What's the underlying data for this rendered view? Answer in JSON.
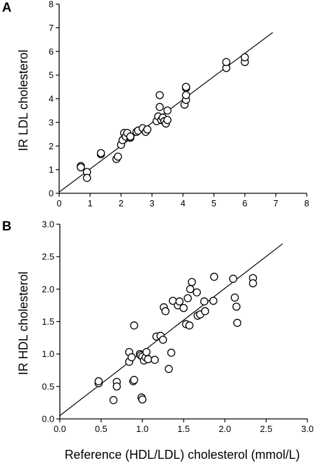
{
  "chart_data": [
    {
      "panel": "A",
      "type": "scatter",
      "ylabel": "IR LDL cholesterol",
      "xlabel": "",
      "xlim": [
        0,
        8
      ],
      "ylim": [
        0,
        8
      ],
      "xticks": [
        "0",
        "1",
        "2",
        "3",
        "4",
        "5",
        "6",
        "7",
        "8"
      ],
      "yticks": [
        "0",
        "1",
        "2",
        "3",
        "4",
        "5",
        "6",
        "7",
        "8"
      ],
      "x": [
        0.7,
        0.7,
        0.9,
        0.9,
        1.35,
        1.35,
        1.85,
        1.9,
        2.0,
        2.05,
        2.1,
        2.15,
        2.2,
        2.3,
        2.3,
        2.5,
        2.55,
        2.7,
        2.8,
        2.85,
        3.15,
        3.2,
        3.25,
        3.25,
        3.3,
        3.35,
        3.4,
        3.45,
        3.5,
        3.5,
        4.05,
        4.1,
        4.1,
        4.1,
        4.1,
        5.4,
        5.4,
        6.0,
        6.0
      ],
      "y": [
        1.15,
        1.1,
        0.9,
        0.65,
        1.65,
        1.7,
        1.45,
        1.55,
        2.05,
        2.25,
        2.55,
        2.4,
        2.55,
        2.35,
        2.4,
        2.6,
        2.65,
        2.75,
        2.6,
        2.7,
        3.05,
        3.25,
        4.15,
        3.65,
        3.1,
        3.2,
        3.05,
        2.95,
        3.1,
        3.5,
        3.75,
        3.95,
        4.15,
        4.45,
        4.5,
        5.3,
        5.55,
        5.55,
        5.75
      ],
      "regression_line": {
        "x": [
          0,
          6.9
        ],
        "y": [
          0.05,
          6.8
        ]
      }
    },
    {
      "panel": "B",
      "type": "scatter",
      "ylabel": "IR HDL cholesterol",
      "xlabel": "Reference (HDL/LDL) cholesterol (mmol/L)",
      "xlim": [
        0,
        3.0
      ],
      "ylim": [
        0,
        3.0
      ],
      "xticks": [
        "0.0",
        "0.5",
        "1.0",
        "1.5",
        "2.0",
        "2.5",
        "3.0"
      ],
      "yticks": [
        "0.0",
        "0.5",
        "1.0",
        "1.5",
        "2.0",
        "2.5",
        "3.0"
      ],
      "x": [
        0.47,
        0.47,
        0.65,
        0.69,
        0.69,
        0.84,
        0.84,
        0.87,
        0.89,
        0.9,
        0.9,
        0.97,
        0.98,
        0.99,
        1.0,
        1.0,
        1.02,
        1.04,
        1.05,
        1.07,
        1.15,
        1.17,
        1.22,
        1.25,
        1.26,
        1.28,
        1.32,
        1.35,
        1.37,
        1.43,
        1.45,
        1.5,
        1.53,
        1.55,
        1.57,
        1.58,
        1.6,
        1.66,
        1.67,
        1.7,
        1.75,
        1.76,
        1.86,
        1.87,
        2.1,
        2.12,
        2.14,
        2.15,
        2.34,
        2.34
      ],
      "y": [
        0.55,
        0.58,
        0.29,
        0.57,
        0.5,
        1.03,
        0.88,
        0.95,
        0.58,
        0.6,
        1.44,
        1.0,
        0.98,
        0.33,
        0.3,
        0.96,
        0.9,
        0.95,
        1.03,
        0.92,
        0.91,
        1.27,
        1.28,
        1.22,
        1.72,
        1.66,
        0.77,
        1.02,
        1.82,
        1.75,
        1.81,
        1.71,
        1.46,
        1.86,
        1.44,
        2.0,
        2.11,
        1.95,
        1.59,
        1.61,
        1.81,
        1.66,
        1.82,
        2.19,
        2.16,
        1.87,
        1.73,
        1.48,
        2.17,
        2.09
      ],
      "regression_line": {
        "x": [
          0,
          2.7
        ],
        "y": [
          0.05,
          2.7
        ]
      }
    }
  ]
}
